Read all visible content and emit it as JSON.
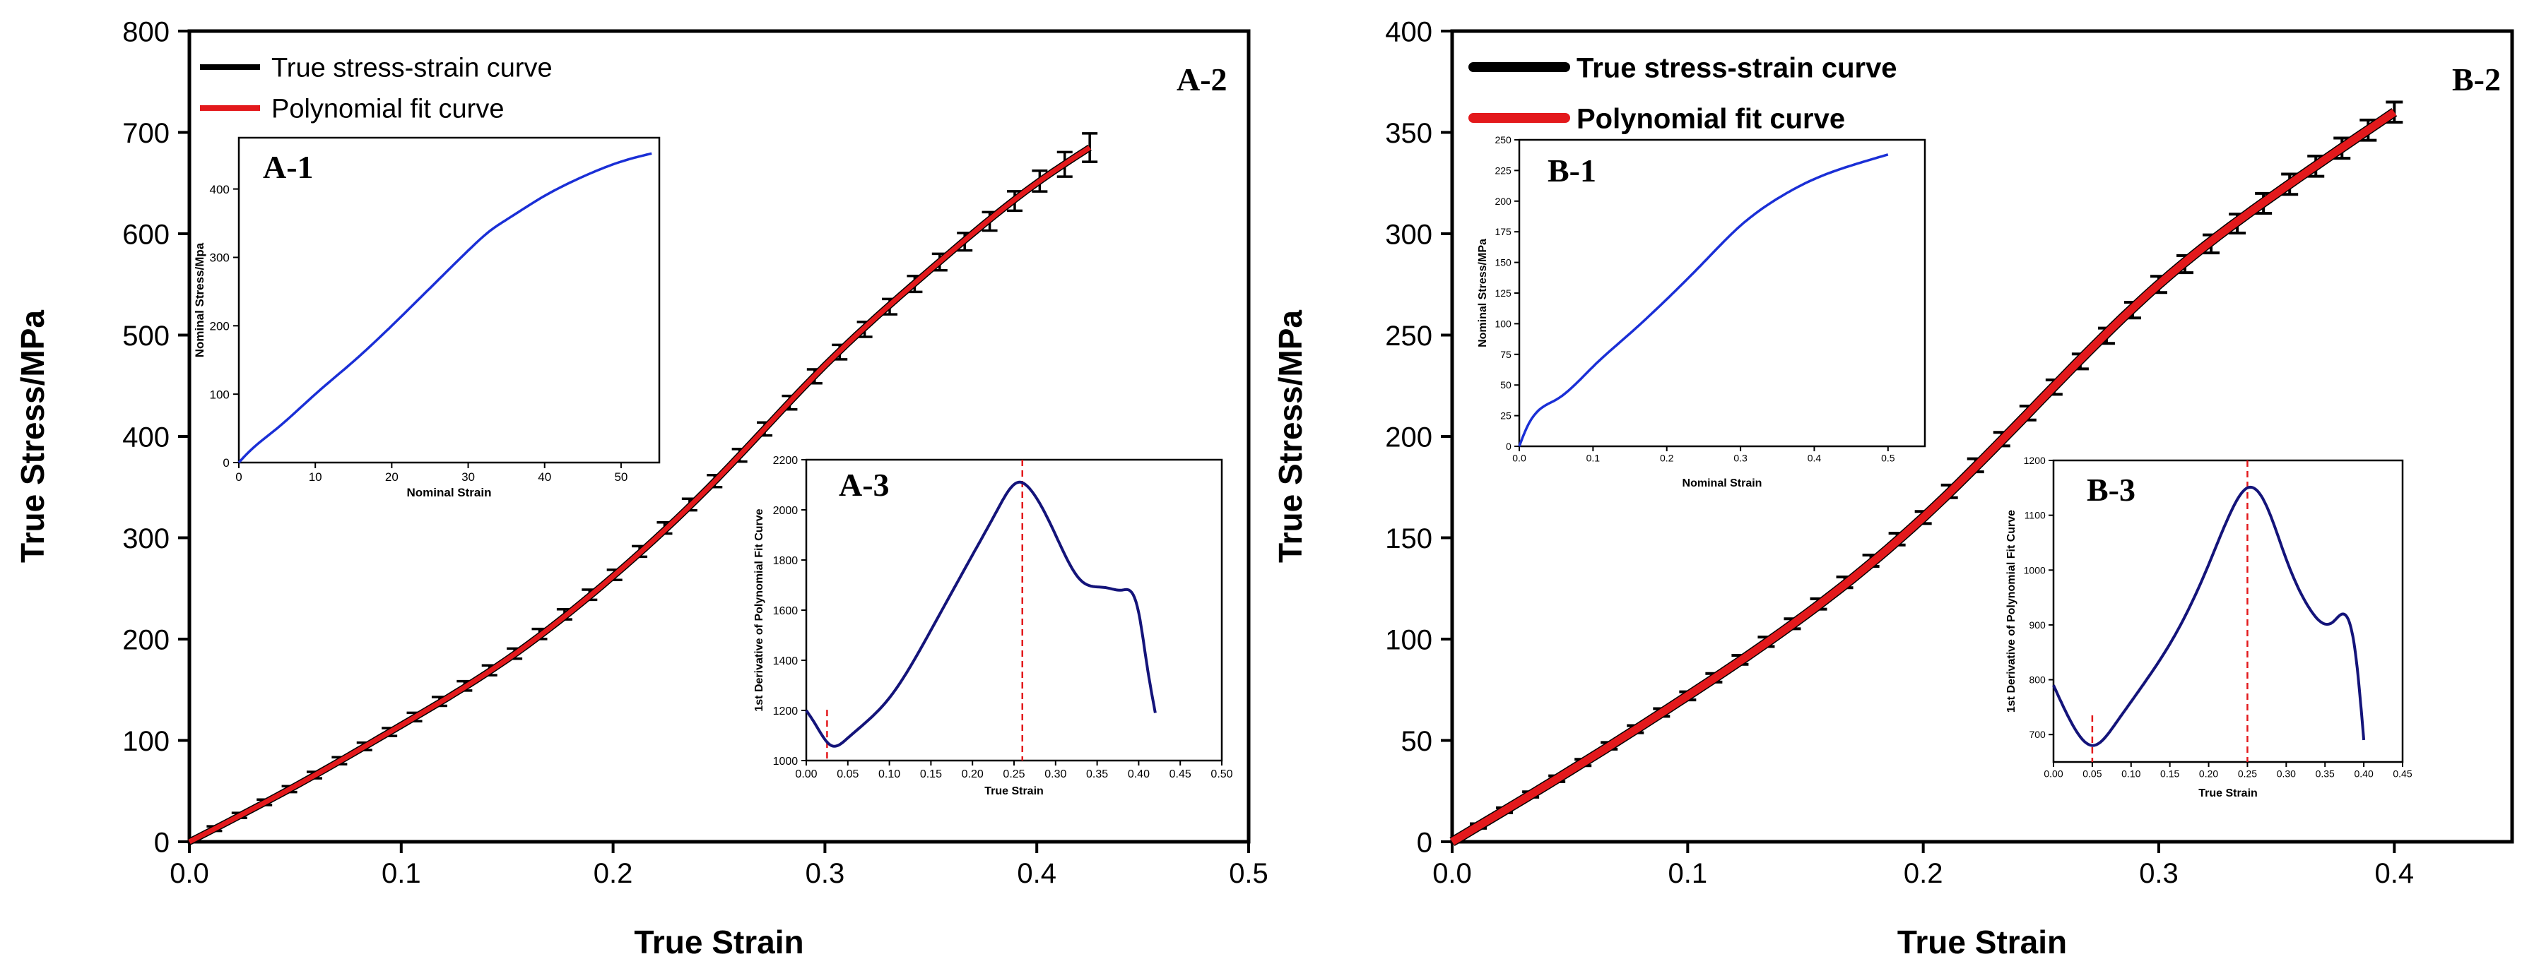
{
  "figure": {
    "colors": {
      "measured": "#000000",
      "fit": "#e3191c",
      "inset": "#1a2fd6",
      "derivative": "#14147a",
      "marker": "#e3191c"
    }
  },
  "chart_data": [
    {
      "id": "A-2",
      "type": "line",
      "panel_label": "A-2",
      "xlabel": "True Strain",
      "ylabel": "True Stress/MPa",
      "xlim": [
        0,
        0.5
      ],
      "ylim": [
        0,
        800
      ],
      "xticks": [
        "0.0",
        "0.1",
        "0.2",
        "0.3",
        "0.4",
        "0.5"
      ],
      "yticks": [
        "0",
        "100",
        "200",
        "300",
        "400",
        "500",
        "600",
        "700",
        "800"
      ],
      "legend": [
        "True stress-strain curve",
        "Polynomial fit curve"
      ],
      "legend_position": "top-left",
      "series": [
        {
          "name": "True stress-strain curve",
          "style": "error-bars",
          "x": [
            0.0,
            0.05,
            0.1,
            0.15,
            0.2,
            0.25,
            0.3,
            0.35,
            0.4,
            0.425
          ],
          "y": [
            0,
            55,
            115,
            180,
            262,
            360,
            470,
            565,
            650,
            685
          ],
          "error": [
            2,
            3,
            4,
            5,
            5,
            6,
            7,
            8,
            10,
            14
          ]
        },
        {
          "name": "Polynomial fit curve",
          "style": "line",
          "x": [
            0.0,
            0.05,
            0.1,
            0.15,
            0.2,
            0.25,
            0.3,
            0.35,
            0.4,
            0.425
          ],
          "y": [
            0,
            55,
            115,
            180,
            262,
            360,
            470,
            565,
            650,
            685
          ]
        }
      ]
    },
    {
      "id": "A-1",
      "type": "line",
      "panel_label": "A-1",
      "xlabel": "Nominal Strain",
      "ylabel": "Nominal Stress/Mpa",
      "xlim": [
        0,
        55
      ],
      "ylim": [
        0,
        475
      ],
      "xticks": [
        "0",
        "10",
        "20",
        "30",
        "40",
        "50"
      ],
      "yticks": [
        "0",
        "100",
        "200",
        "300",
        "400"
      ],
      "series": [
        {
          "name": "Nominal stress-strain",
          "x": [
            0,
            1,
            5,
            10,
            15,
            20,
            25,
            30,
            33,
            35,
            40,
            45,
            50,
            54
          ],
          "y": [
            0,
            12,
            50,
            100,
            148,
            200,
            255,
            310,
            340,
            355,
            390,
            418,
            440,
            452
          ]
        }
      ]
    },
    {
      "id": "A-3",
      "type": "line",
      "panel_label": "A-3",
      "xlabel": "True Strain",
      "ylabel": "1st Derivative of Polynomial Fit Curve",
      "xlim": [
        0,
        0.5
      ],
      "ylim": [
        1000,
        2200
      ],
      "xticks": [
        "0.00",
        "0.05",
        "0.10",
        "0.15",
        "0.20",
        "0.25",
        "0.30",
        "0.35",
        "0.40",
        "0.45",
        "0.50"
      ],
      "yticks": [
        "1000",
        "1200",
        "1400",
        "1600",
        "1800",
        "2000",
        "2200"
      ],
      "series": [
        {
          "name": "1st derivative",
          "x": [
            0.0,
            0.01,
            0.03,
            0.05,
            0.1,
            0.15,
            0.2,
            0.23,
            0.255,
            0.27,
            0.3,
            0.33,
            0.36,
            0.38,
            0.4,
            0.41,
            0.42
          ],
          "y": [
            1200,
            1150,
            1060,
            1090,
            1250,
            1520,
            1820,
            2000,
            2110,
            2080,
            1900,
            1720,
            1690,
            1680,
            1590,
            1380,
            1190
          ]
        }
      ],
      "markers": [
        0.025,
        0.26
      ]
    },
    {
      "id": "B-2",
      "type": "line",
      "panel_label": "B-2",
      "xlabel": "True Strain",
      "ylabel": "True Stress/MPa",
      "xlim": [
        0,
        0.45
      ],
      "ylim": [
        0,
        400
      ],
      "xticks": [
        "0.0",
        "0.1",
        "0.2",
        "0.3",
        "0.4"
      ],
      "yticks": [
        "0",
        "50",
        "100",
        "150",
        "200",
        "250",
        "300",
        "350",
        "400"
      ],
      "legend": [
        "True stress-strain curve",
        "Polynomial fit curve"
      ],
      "legend_position": "top-left",
      "series": [
        {
          "name": "True stress-strain curve",
          "style": "error-bars",
          "x": [
            0.0,
            0.05,
            0.1,
            0.15,
            0.2,
            0.25,
            0.3,
            0.35,
            0.4
          ],
          "y": [
            0,
            35,
            72,
            112,
            160,
            218,
            275,
            320,
            360
          ],
          "error": [
            1,
            1.5,
            2,
            2.5,
            3,
            3.5,
            4,
            5,
            5
          ]
        },
        {
          "name": "Polynomial fit curve",
          "style": "line",
          "x": [
            0.0,
            0.05,
            0.1,
            0.15,
            0.2,
            0.25,
            0.3,
            0.35,
            0.4
          ],
          "y": [
            0,
            35,
            72,
            112,
            160,
            218,
            275,
            320,
            360
          ]
        }
      ]
    },
    {
      "id": "B-1",
      "type": "line",
      "panel_label": "B-1",
      "xlabel": "Nominal Strain",
      "ylabel": "Nominal Stress/MPa",
      "xlim": [
        0,
        0.55
      ],
      "ylim": [
        0,
        250
      ],
      "xticks": [
        "0.0",
        "0.1",
        "0.2",
        "0.3",
        "0.4",
        "0.5"
      ],
      "yticks": [
        "0",
        "25",
        "50",
        "75",
        "100",
        "125",
        "150",
        "175",
        "200",
        "225",
        "250"
      ],
      "series": [
        {
          "name": "Nominal stress-strain",
          "x": [
            0,
            0.01,
            0.05,
            0.1,
            0.15,
            0.2,
            0.25,
            0.3,
            0.35,
            0.4,
            0.45,
            0.5
          ],
          "y": [
            0,
            15,
            38,
            65,
            92,
            120,
            150,
            180,
            202,
            218,
            229,
            238
          ]
        }
      ]
    },
    {
      "id": "B-3",
      "type": "line",
      "panel_label": "B-3",
      "xlabel": "True Strain",
      "ylabel": "1st Derivative of Polynomial Fit Curve",
      "xlim": [
        0,
        0.45
      ],
      "ylim": [
        650,
        1200
      ],
      "xticks": [
        "0.00",
        "0.05",
        "0.10",
        "0.15",
        "0.20",
        "0.25",
        "0.30",
        "0.35",
        "0.40",
        "0.45"
      ],
      "yticks": [
        "700",
        "800",
        "900",
        "1000",
        "1100",
        "1200"
      ],
      "series": [
        {
          "name": "1st derivative",
          "x": [
            0.0,
            0.02,
            0.05,
            0.08,
            0.12,
            0.16,
            0.2,
            0.23,
            0.25,
            0.27,
            0.3,
            0.33,
            0.36,
            0.38,
            0.39,
            0.4
          ],
          "y": [
            790,
            730,
            680,
            720,
            800,
            890,
            1010,
            1110,
            1150,
            1130,
            1020,
            930,
            905,
            910,
            840,
            690
          ]
        }
      ],
      "markers": [
        0.05,
        0.25
      ]
    }
  ]
}
